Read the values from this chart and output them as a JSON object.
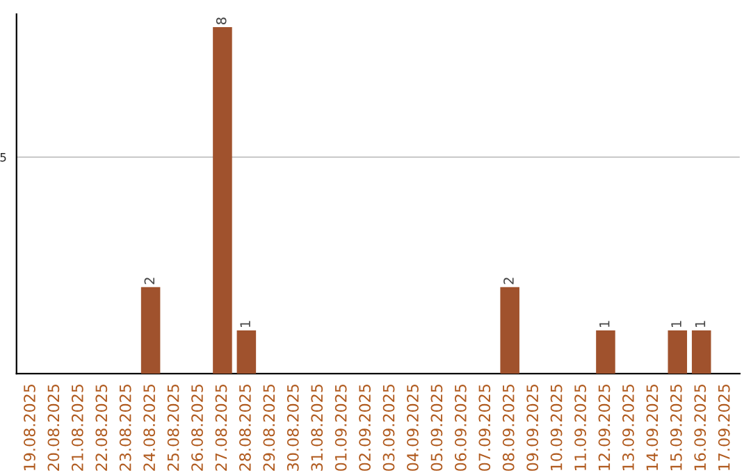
{
  "chart_data": {
    "type": "bar",
    "categories": [
      "19.08.2025",
      "20.08.2025",
      "21.08.2025",
      "22.08.2025",
      "23.08.2025",
      "24.08.2025",
      "25.08.2025",
      "26.08.2025",
      "27.08.2025",
      "28.08.2025",
      "29.08.2025",
      "30.08.2025",
      "31.08.2025",
      "01.09.2025",
      "02.09.2025",
      "03.09.2025",
      "04.09.2025",
      "05.09.2025",
      "06.09.2025",
      "07.09.2025",
      "08.09.2025",
      "09.09.2025",
      "10.09.2025",
      "11.09.2025",
      "12.09.2025",
      "13.09.2025",
      "14.09.2025",
      "15.09.2025",
      "16.09.2025",
      "17.09.2025"
    ],
    "values": [
      0,
      0,
      0,
      0,
      0,
      2,
      0,
      0,
      8,
      1,
      0,
      0,
      0,
      0,
      0,
      0,
      0,
      0,
      0,
      0,
      2,
      0,
      0,
      0,
      1,
      0,
      0,
      1,
      1,
      0
    ],
    "value_labels": [
      null,
      null,
      null,
      null,
      null,
      "2",
      null,
      null,
      "8",
      "1",
      null,
      null,
      null,
      null,
      null,
      null,
      null,
      null,
      null,
      null,
      "2",
      null,
      null,
      null,
      "1",
      null,
      null,
      "1",
      "1",
      null
    ],
    "color": "#a0522d",
    "ylim": [
      0,
      8.3
    ],
    "yticks": [
      5
    ],
    "grid": "y",
    "legend": false
  }
}
